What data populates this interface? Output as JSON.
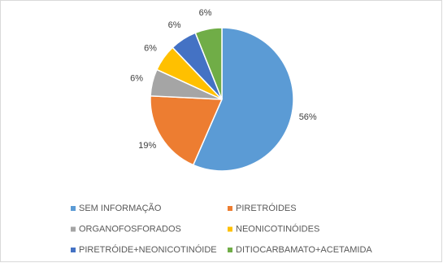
{
  "chart_data": {
    "type": "pie",
    "categories": [
      "SEM INFORMAÇÃO",
      "PIRETRÓIDES",
      "ORGANOFOSFORADOS",
      "NEONICOTINÓIDES",
      "PIRETRÓIDE+NEONICOTINÓIDE",
      "DITIOCARBAMATO+ACETAMIDA"
    ],
    "values": [
      56,
      19,
      6,
      6,
      6,
      6
    ],
    "value_labels": [
      "56%",
      "19%",
      "6%",
      "6%",
      "6%",
      "6%"
    ],
    "colors": [
      "#5b9bd5",
      "#ed7d31",
      "#a5a5a5",
      "#ffc000",
      "#4472c4",
      "#70ad47"
    ],
    "legend": "bottom"
  }
}
